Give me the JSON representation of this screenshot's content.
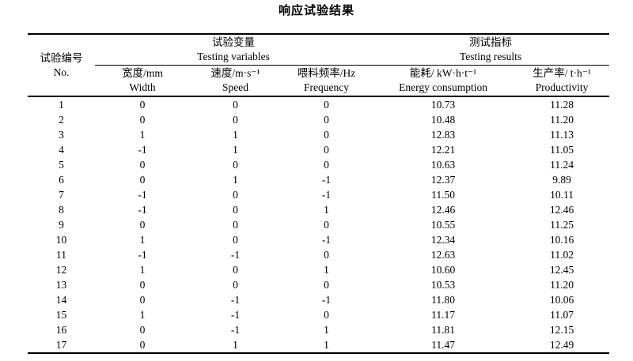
{
  "title": "响应试验结果",
  "table": {
    "group_headers": {
      "id": {
        "zh": "试验编号",
        "en": "No."
      },
      "variables": {
        "zh": "试验变量",
        "en": "Testing variables"
      },
      "results": {
        "zh": "测试指标",
        "en": "Testing results"
      }
    },
    "columns": {
      "width": {
        "zh": "宽度/mm",
        "en": "Width"
      },
      "speed": {
        "zh": "速度/m·s⁻¹",
        "en": "Speed"
      },
      "frequency": {
        "zh": "喂料频率/Hz",
        "en": "Frequency"
      },
      "energy": {
        "zh": "能耗/ kW·h·t⁻¹",
        "en": "Energy consumption"
      },
      "productivity": {
        "zh": "生产率/ t·h⁻¹",
        "en": "Productivity"
      }
    },
    "rows": [
      {
        "no": "1",
        "width": "0",
        "speed": "0",
        "frequency": "0",
        "energy": "10.73",
        "productivity": "11.28"
      },
      {
        "no": "2",
        "width": "0",
        "speed": "0",
        "frequency": "0",
        "energy": "10.48",
        "productivity": "11.20"
      },
      {
        "no": "3",
        "width": "1",
        "speed": "1",
        "frequency": "0",
        "energy": "12.83",
        "productivity": "11.13"
      },
      {
        "no": "4",
        "width": "-1",
        "speed": "1",
        "frequency": "0",
        "energy": "12.21",
        "productivity": "11.05"
      },
      {
        "no": "5",
        "width": "0",
        "speed": "0",
        "frequency": "0",
        "energy": "10.63",
        "productivity": "11.24"
      },
      {
        "no": "6",
        "width": "0",
        "speed": "1",
        "frequency": "-1",
        "energy": "12.37",
        "productivity": "9.89"
      },
      {
        "no": "7",
        "width": "-1",
        "speed": "0",
        "frequency": "-1",
        "energy": "11.50",
        "productivity": "10.11"
      },
      {
        "no": "8",
        "width": "-1",
        "speed": "0",
        "frequency": "1",
        "energy": "12.46",
        "productivity": "12.46"
      },
      {
        "no": "9",
        "width": "0",
        "speed": "0",
        "frequency": "0",
        "energy": "10.55",
        "productivity": "11.25"
      },
      {
        "no": "10",
        "width": "1",
        "speed": "0",
        "frequency": "-1",
        "energy": "12.34",
        "productivity": "10.16"
      },
      {
        "no": "11",
        "width": "-1",
        "speed": "-1",
        "frequency": "0",
        "energy": "12.63",
        "productivity": "11.02"
      },
      {
        "no": "12",
        "width": "1",
        "speed": "0",
        "frequency": "1",
        "energy": "10.60",
        "productivity": "12.45"
      },
      {
        "no": "13",
        "width": "0",
        "speed": "0",
        "frequency": "0",
        "energy": "10.53",
        "productivity": "11.20"
      },
      {
        "no": "14",
        "width": "0",
        "speed": "-1",
        "frequency": "-1",
        "energy": "11.80",
        "productivity": "10.06"
      },
      {
        "no": "15",
        "width": "1",
        "speed": "-1",
        "frequency": "0",
        "energy": "11.17",
        "productivity": "11.07"
      },
      {
        "no": "16",
        "width": "0",
        "speed": "-1",
        "frequency": "1",
        "energy": "11.81",
        "productivity": "12.15"
      },
      {
        "no": "17",
        "width": "0",
        "speed": "1",
        "frequency": "1",
        "energy": "11.47",
        "productivity": "12.49"
      }
    ]
  }
}
